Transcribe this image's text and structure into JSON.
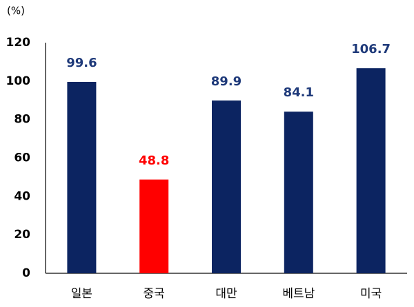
{
  "chart_data": {
    "type": "bar",
    "y_label": "(%)",
    "categories": [
      "일본",
      "중국",
      "대만",
      "베트남",
      "미국"
    ],
    "values": [
      99.6,
      48.8,
      89.9,
      84.1,
      106.7
    ],
    "colors": [
      "#0c2461",
      "#ff0000",
      "#0c2461",
      "#0c2461",
      "#0c2461"
    ],
    "label_colors": [
      "#1f3a7a",
      "#ff0000",
      "#1f3a7a",
      "#1f3a7a",
      "#1f3a7a"
    ],
    "ylim": [
      0,
      120
    ],
    "yticks": [
      0,
      20,
      40,
      60,
      80,
      100,
      120
    ],
    "grid": false
  }
}
